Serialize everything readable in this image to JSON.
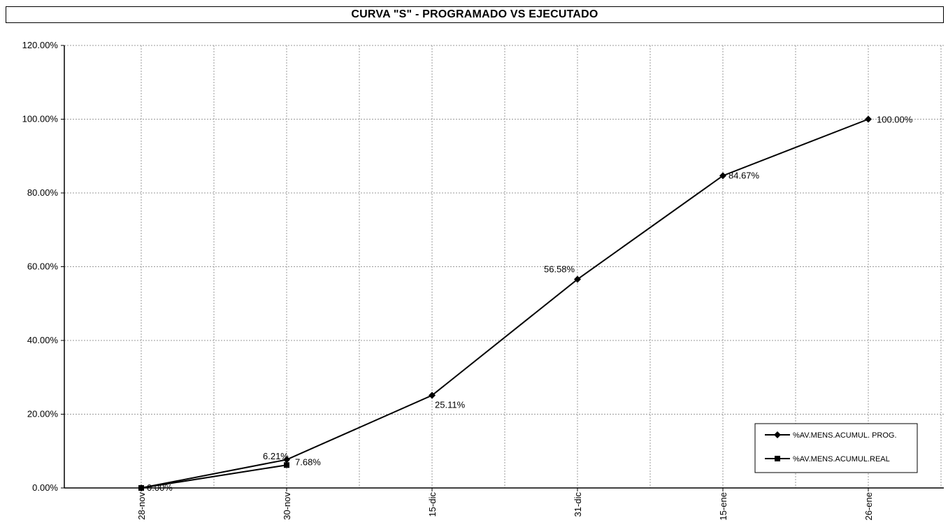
{
  "chart_data": {
    "type": "line",
    "title": "CURVA \"S\" - PROGRAMADO VS EJECUTADO",
    "xlabel": "",
    "ylabel": "",
    "categories": [
      "28-nov",
      "30-nov",
      "15-dic",
      "31-dic",
      "15-ene",
      "26-ene"
    ],
    "ylim": [
      0,
      120
    ],
    "yticks": [
      0,
      20,
      40,
      60,
      80,
      100,
      120
    ],
    "ytick_labels": [
      "0.00%",
      "20.00%",
      "40.00%",
      "60.00%",
      "80.00%",
      "100.00%",
      "120.00%"
    ],
    "grid": true,
    "legend_position": "bottom-right",
    "series": [
      {
        "name": "%AV.MENS.ACUMUL. PROG.",
        "marker": "diamond",
        "values": [
          0,
          7.68,
          25.11,
          56.58,
          84.67,
          100
        ],
        "data_labels": [
          "0.00%",
          "7.68%",
          "25.11%",
          "56.58%",
          "84.67%",
          "100.00%"
        ]
      },
      {
        "name": "%AV.MENS.ACUMUL.REAL",
        "marker": "square",
        "values": [
          0,
          6.21,
          null,
          null,
          null,
          null
        ],
        "data_labels": [
          "",
          "6.21%",
          "",
          "",
          "",
          ""
        ]
      }
    ],
    "colors": {
      "line": "#000000",
      "grid": "#9a9a9a",
      "axis": "#000000"
    }
  }
}
